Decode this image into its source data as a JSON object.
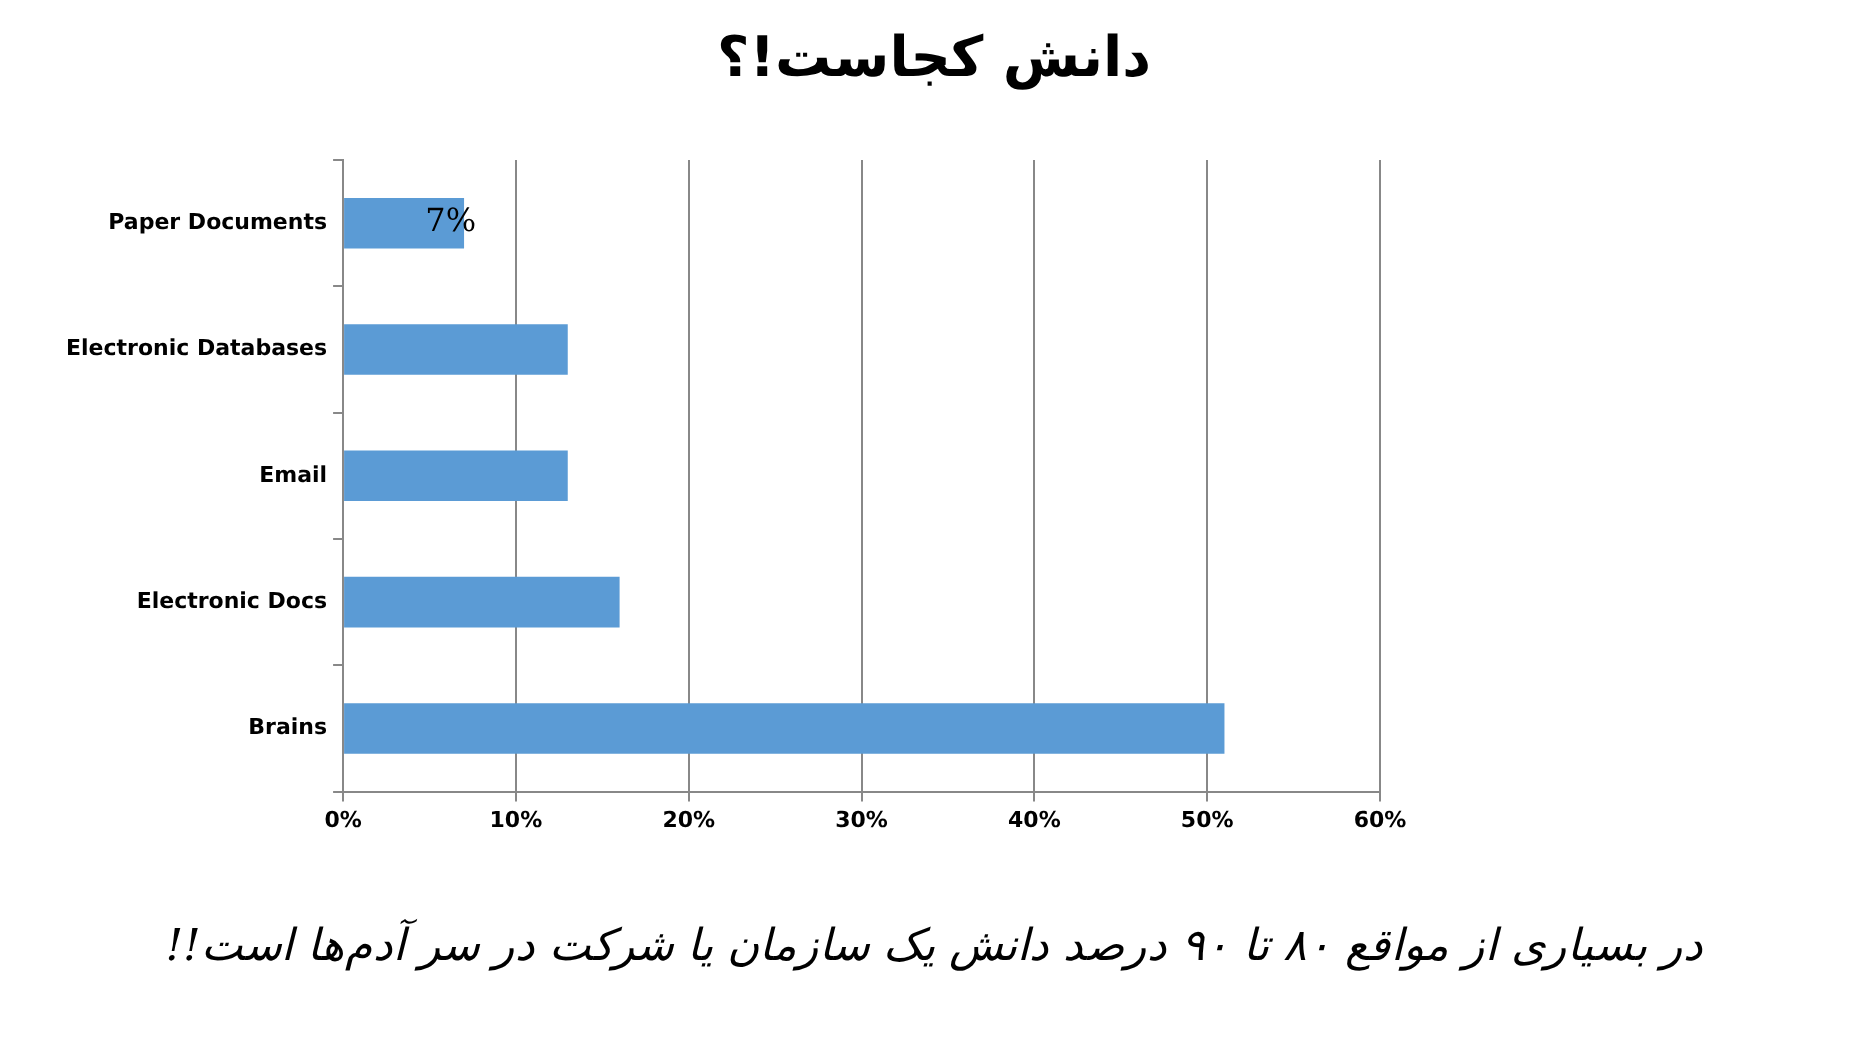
{
  "chart_data": {
    "type": "bar",
    "orientation": "horizontal",
    "title": "دانش کجاست!؟",
    "categories": [
      "Paper Documents",
      "Electronic Databases",
      "Email",
      "Electronic Docs",
      "Brains"
    ],
    "values": [
      7,
      13,
      13,
      16,
      51
    ],
    "color": "#5b9bd5",
    "value_labels": [
      "7%",
      null,
      null,
      null,
      null
    ],
    "xlim": [
      0,
      60
    ],
    "xticks": [
      {
        "value": 0,
        "label": "0%"
      },
      {
        "value": 10,
        "label": "10%"
      },
      {
        "value": 20,
        "label": "20%"
      },
      {
        "value": 30,
        "label": "30%"
      },
      {
        "value": 40,
        "label": "40%"
      },
      {
        "value": 50,
        "label": "50%"
      },
      {
        "value": 60,
        "label": "60%"
      }
    ],
    "grid": "x",
    "legend": false,
    "annotations": [
      "در بسیاری از مواقع ۸۰ تا ۹۰ درصد دانش یک سازمان یا شرکت در سر آدم‌ها است!!"
    ]
  }
}
